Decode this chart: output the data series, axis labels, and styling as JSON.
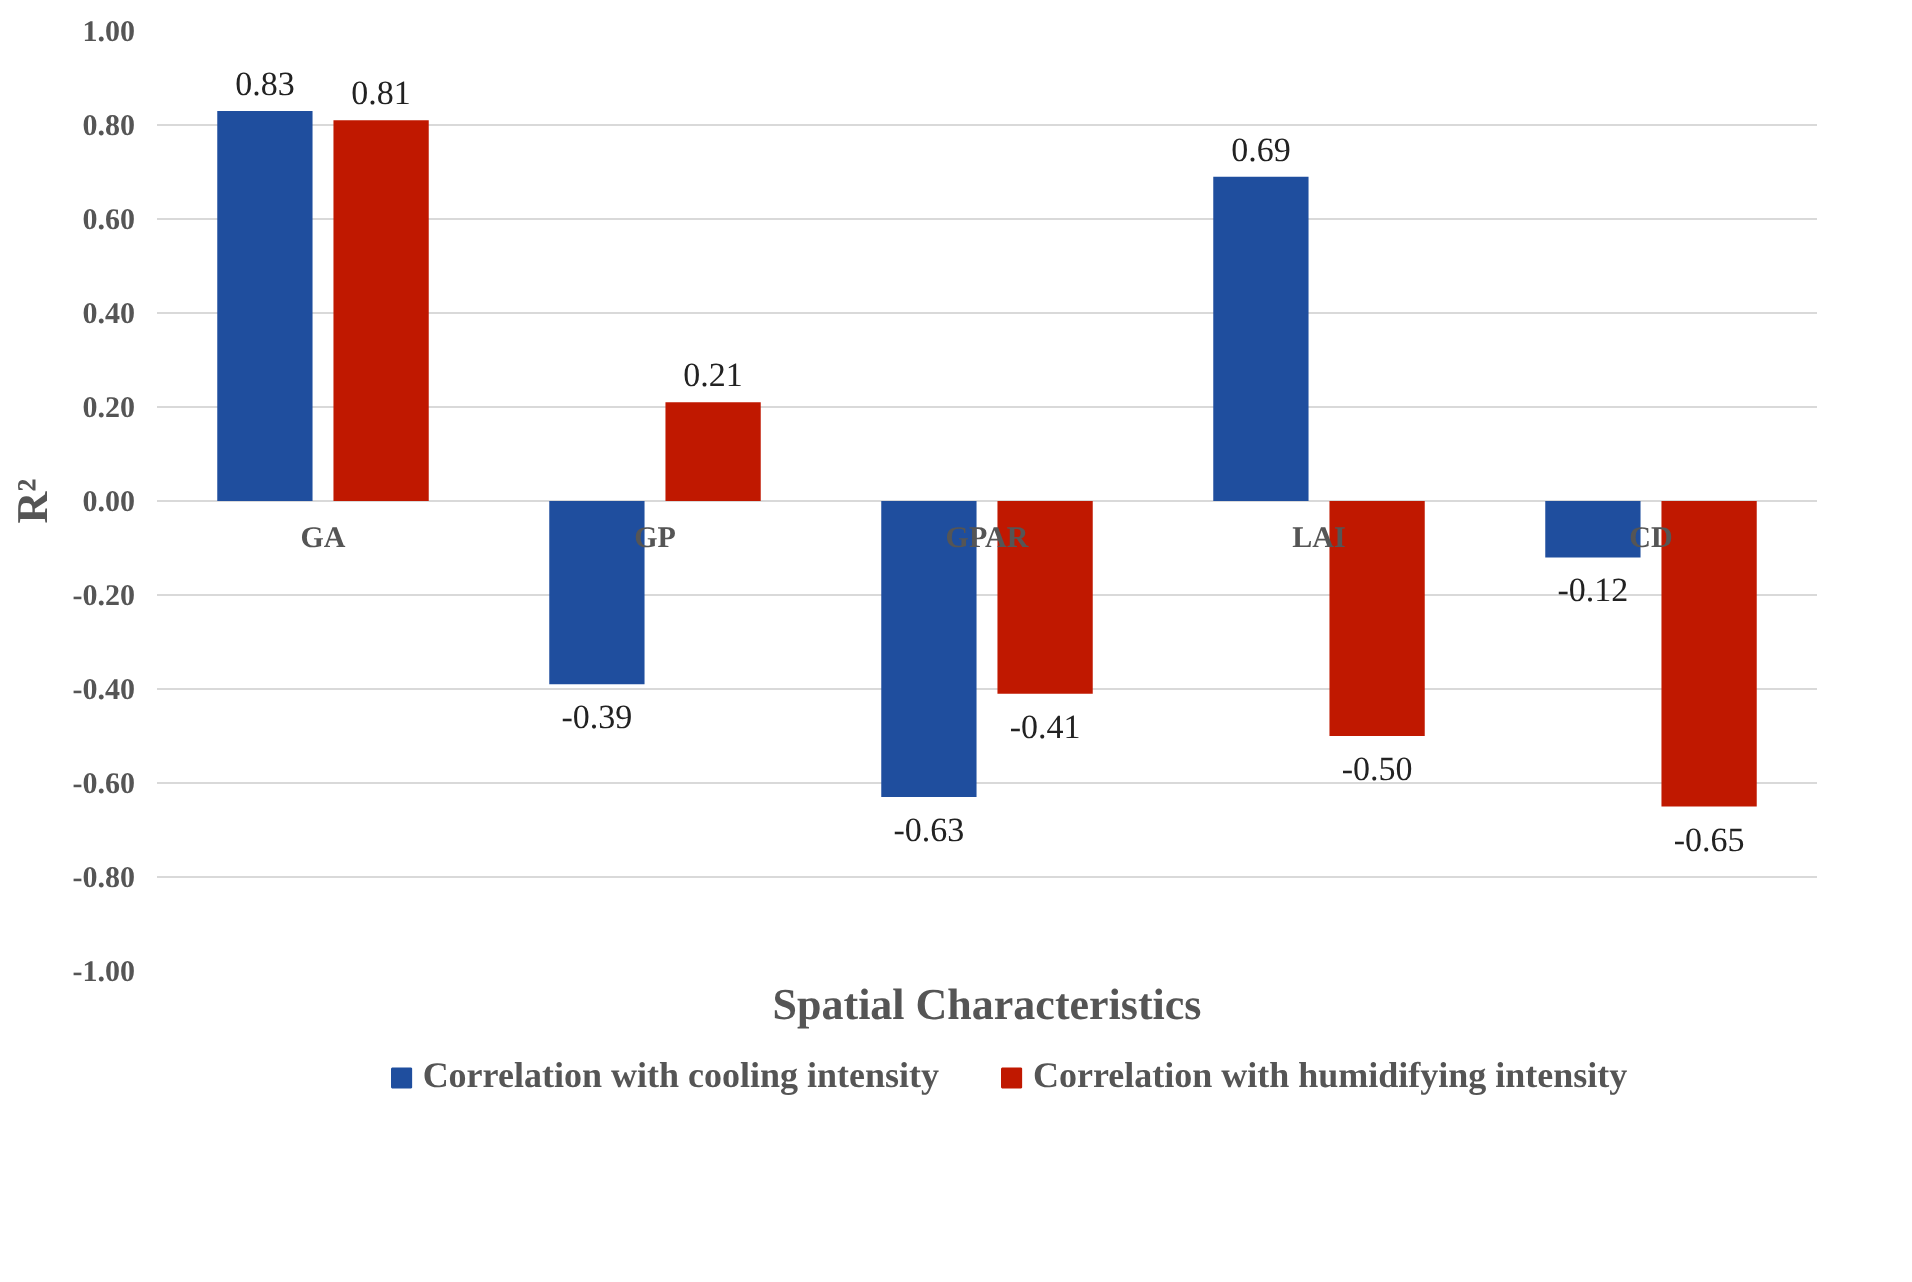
{
  "chart_data": {
    "type": "bar",
    "xlabel": "Spatial Characteristics",
    "ylabel": "R²",
    "categories": [
      "GA",
      "GP",
      "GPAR",
      "LAI",
      "CD"
    ],
    "series": [
      {
        "name": "Correlation with cooling intensity",
        "color": "#1f4e9e",
        "values": [
          0.83,
          -0.39,
          -0.63,
          0.69,
          -0.12
        ],
        "value_labels": [
          "0.83",
          "-0.39",
          "-0.63",
          "0.69",
          "-0.12"
        ]
      },
      {
        "name": "Correlation with humidifying intensity",
        "color": "#c01800",
        "values": [
          0.81,
          0.21,
          -0.41,
          -0.5,
          -0.65
        ],
        "value_labels": [
          "0.81",
          "0.21",
          "-0.41",
          "-0.50",
          "-0.65"
        ]
      }
    ],
    "ylim": [
      -1.0,
      1.0
    ],
    "yticks": [
      {
        "value": -1.0,
        "label": "-1.00"
      },
      {
        "value": -0.8,
        "label": "-0.80"
      },
      {
        "value": -0.6,
        "label": "-0.60"
      },
      {
        "value": -0.4,
        "label": "-0.40"
      },
      {
        "value": -0.2,
        "label": "-0.20"
      },
      {
        "value": 0.0,
        "label": "0.00"
      },
      {
        "value": 0.2,
        "label": "0.20"
      },
      {
        "value": 0.4,
        "label": "0.40"
      },
      {
        "value": 0.6,
        "label": "0.60"
      },
      {
        "value": 0.8,
        "label": "0.80"
      },
      {
        "value": 1.0,
        "label": "1.00"
      }
    ],
    "grid": "y",
    "legend": "bottom"
  }
}
